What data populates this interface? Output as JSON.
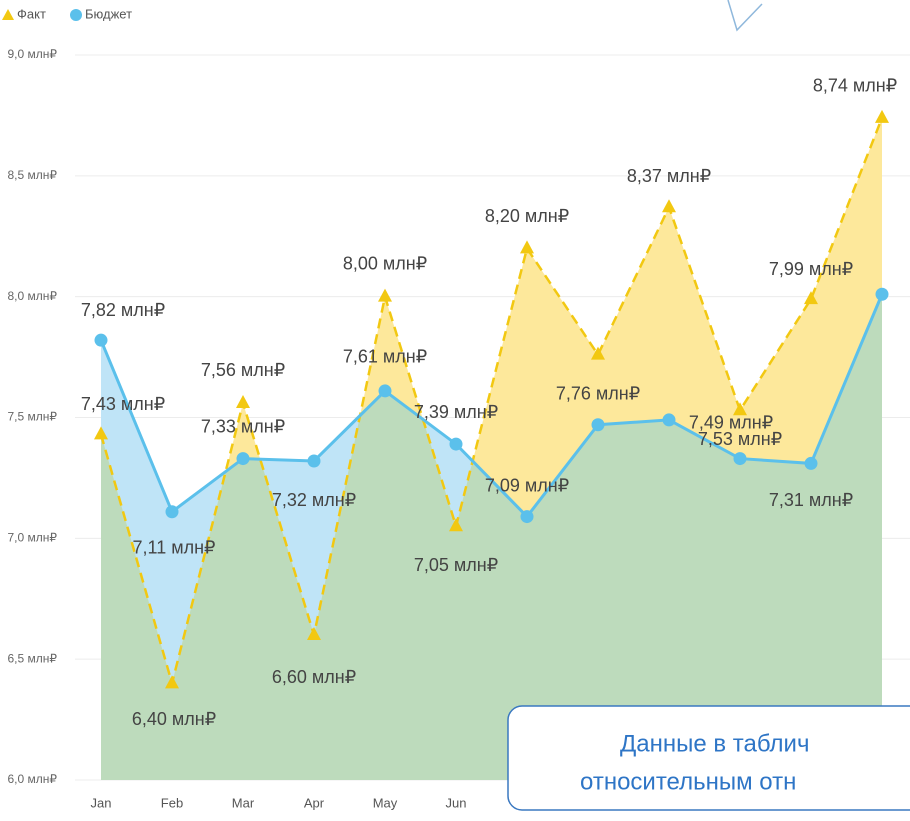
{
  "chart_data": {
    "type": "line",
    "categories": [
      "Jan",
      "Feb",
      "Mar",
      "Apr",
      "May",
      "Jun",
      null,
      null,
      null,
      null,
      null,
      null
    ],
    "series": [
      {
        "name": "Факт",
        "color": "#f2c811",
        "area_color": "#fde89b",
        "marker": "triangle",
        "dashed": true,
        "values": [
          7.43,
          6.4,
          7.56,
          6.6,
          8.0,
          7.05,
          8.2,
          7.76,
          8.37,
          7.53,
          7.99,
          8.74
        ],
        "value_labels": [
          "7,43 млн₽",
          "6,40 млн₽",
          "7,56 млн₽",
          "6,60 млн₽",
          "8,00 млн₽",
          "7,05 млн₽",
          "8,20 млн₽",
          "7,76 млн₽",
          "8,37 млн₽",
          "7,53 млн₽",
          "7,99 млн₽",
          "8,74 млн₽"
        ]
      },
      {
        "name": "Бюджет",
        "color": "#5bc0eb",
        "area_color": "#bfe4f7",
        "marker": "circle",
        "dashed": false,
        "values": [
          7.82,
          7.11,
          7.33,
          7.32,
          7.61,
          7.39,
          7.09,
          7.47,
          7.49,
          7.33,
          7.31,
          8.01
        ],
        "value_labels": [
          "7,82 млн₽",
          "7,11 млн₽",
          "7,33 млн₽",
          "7,32 млн₽",
          "7,61 млн₽",
          "7,39 млн₽",
          "7,09 млн₽",
          null,
          "7,49 млн₽",
          null,
          "7,31 млн₽",
          null
        ]
      }
    ],
    "overlap_color": "#bddbbc",
    "ylim": [
      6,
      9
    ],
    "yticks": [
      {
        "value": 6,
        "label": "6,0 млн₽"
      },
      {
        "value": 6.5,
        "label": "6,5 млн₽"
      },
      {
        "value": 7,
        "label": "7,0 млн₽"
      },
      {
        "value": 7.5,
        "label": "7,5 млн₽"
      },
      {
        "value": 8,
        "label": "8,0 млн₽"
      },
      {
        "value": 8.5,
        "label": "8,5 млн₽"
      },
      {
        "value": 9,
        "label": "9,0 млн₽"
      }
    ],
    "grid": true,
    "legend": "top-left"
  },
  "callout": {
    "lines": [
      "Данные в таблич",
      "относительным отн"
    ]
  }
}
